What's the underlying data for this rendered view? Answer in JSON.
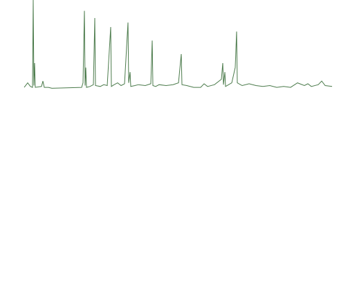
{
  "chart_data": {
    "type": "line",
    "x": [
      35,
      40,
      44,
      47,
      48,
      49,
      50,
      51,
      60,
      62,
      64,
      70,
      75,
      118,
      120,
      122,
      123,
      124,
      125,
      130,
      135,
      137,
      138,
      145,
      150,
      155,
      160,
      161,
      165,
      170,
      175,
      180,
      185,
      186,
      188,
      189,
      195,
      200,
      210,
      218,
      220,
      221,
      225,
      230,
      240,
      250,
      258,
      262,
      263,
      270,
      280,
      290,
      295,
      300,
      310,
      320,
      322,
      323,
      325,
      326,
      335,
      340,
      342,
      343,
      350,
      360,
      370,
      380,
      390,
      400,
      410,
      420,
      430,
      440,
      445,
      450,
      460,
      465,
      470,
      480
    ],
    "series": [
      {
        "color": "#4a7a4a",
        "values": [
          3,
          8,
          4,
          3,
          100,
          5,
          30,
          3,
          4,
          10,
          3,
          3,
          2,
          3,
          8,
          88,
          5,
          25,
          3,
          4,
          6,
          80,
          5,
          4,
          6,
          5,
          70,
          4,
          6,
          8,
          5,
          7,
          75,
          8,
          20,
          4,
          5,
          6,
          5,
          7,
          55,
          5,
          4,
          6,
          5,
          6,
          8,
          40,
          6,
          5,
          3,
          3,
          7,
          4,
          6,
          12,
          30,
          6,
          20,
          4,
          8,
          25,
          65,
          8,
          5,
          7,
          5,
          4,
          5,
          3,
          4,
          3,
          8,
          5,
          7,
          4,
          6,
          10,
          5,
          4
        ]
      }
    ],
    "xlim": [
      35,
      480
    ],
    "ylim": [
      0,
      100
    ]
  }
}
